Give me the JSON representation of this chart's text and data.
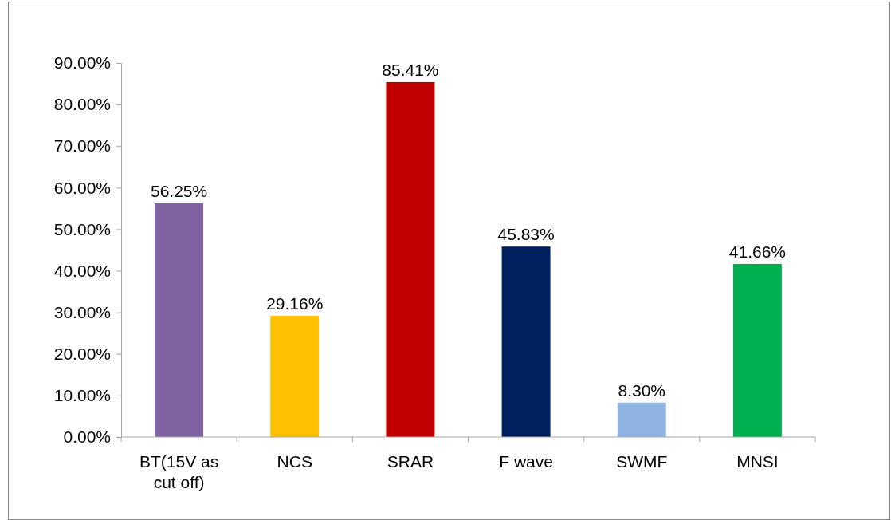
{
  "chart_data": {
    "type": "bar",
    "categories": [
      "BT(15V as cut off)",
      "NCS",
      "SRAR",
      "F wave",
      "SWMF",
      "MNSI"
    ],
    "values": [
      56.25,
      29.16,
      85.41,
      45.83,
      8.3,
      41.66
    ],
    "colors": [
      "#8064a2",
      "#ffc000",
      "#c00000",
      "#002060",
      "#8db4e2",
      "#00b050"
    ],
    "value_labels": [
      "56.25%",
      "29.16%",
      "85.41%",
      "45.83%",
      "8.30%",
      "41.66%"
    ],
    "ylim": [
      0,
      90
    ],
    "yticks": [
      {
        "value": 0,
        "label": "0.00%"
      },
      {
        "value": 10,
        "label": "10.00%"
      },
      {
        "value": 20,
        "label": "20.00%"
      },
      {
        "value": 30,
        "label": "30.00%"
      },
      {
        "value": 40,
        "label": "40.00%"
      },
      {
        "value": 50,
        "label": "50.00%"
      },
      {
        "value": 60,
        "label": "60.00%"
      },
      {
        "value": 70,
        "label": "70.00%"
      },
      {
        "value": 80,
        "label": "80.00%"
      },
      {
        "value": 90,
        "label": "90.00%"
      }
    ],
    "grid": false
  }
}
